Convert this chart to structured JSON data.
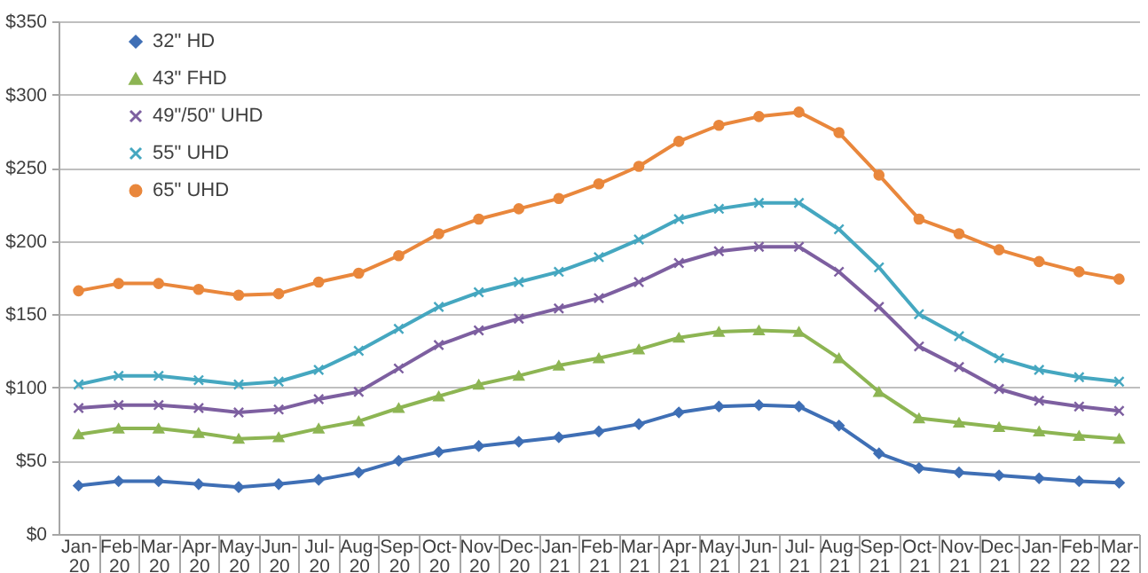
{
  "chart_data": {
    "type": "line",
    "categories": [
      "Jan-20",
      "Feb-20",
      "Mar-20",
      "Apr-20",
      "May-20",
      "Jun-20",
      "Jul-20",
      "Aug-20",
      "Sep-20",
      "Oct-20",
      "Nov-20",
      "Dec-20",
      "Jan-21",
      "Feb-21",
      "Mar-21",
      "Apr-21",
      "May-21",
      "Jun-21",
      "Jul-21",
      "Aug-21",
      "Sep-21",
      "Oct-21",
      "Nov-21",
      "Dec-21",
      "Jan-22",
      "Feb-22",
      "Mar-22"
    ],
    "series": [
      {
        "name": "32\" HD",
        "color": "#3f6fb5",
        "marker": "diamond",
        "values": [
          33,
          36,
          36,
          34,
          32,
          34,
          37,
          42,
          50,
          56,
          60,
          63,
          66,
          70,
          75,
          83,
          87,
          88,
          87,
          74,
          55,
          45,
          42,
          40,
          38,
          36,
          35
        ]
      },
      {
        "name": "43\" FHD",
        "color": "#8db553",
        "marker": "triangle",
        "values": [
          68,
          72,
          72,
          69,
          65,
          66,
          72,
          77,
          86,
          94,
          102,
          108,
          115,
          120,
          126,
          134,
          138,
          139,
          138,
          120,
          97,
          79,
          76,
          73,
          70,
          67,
          65
        ]
      },
      {
        "name": "49\"/50\" UHD",
        "color": "#7d5fa0",
        "marker": "cross",
        "values": [
          86,
          88,
          88,
          86,
          83,
          85,
          92,
          97,
          113,
          129,
          139,
          147,
          154,
          161,
          172,
          185,
          193,
          196,
          196,
          179,
          155,
          128,
          114,
          99,
          91,
          87,
          84
        ]
      },
      {
        "name": "55\" UHD",
        "color": "#45a7c0",
        "marker": "cross",
        "values": [
          102,
          108,
          108,
          105,
          102,
          104,
          112,
          125,
          140,
          155,
          165,
          172,
          179,
          189,
          201,
          215,
          222,
          226,
          226,
          208,
          182,
          150,
          135,
          120,
          112,
          107,
          104
        ]
      },
      {
        "name": "65\" UHD",
        "color": "#e9873c",
        "marker": "circle",
        "values": [
          166,
          171,
          171,
          167,
          163,
          164,
          172,
          178,
          190,
          205,
          215,
          222,
          229,
          239,
          251,
          268,
          279,
          285,
          288,
          274,
          245,
          215,
          205,
          194,
          186,
          179,
          174
        ]
      }
    ],
    "ylim": [
      0,
      350
    ],
    "yticks": [
      {
        "value": 0,
        "label": "$0"
      },
      {
        "value": 50,
        "label": "$50"
      },
      {
        "value": 100,
        "label": "$100"
      },
      {
        "value": 150,
        "label": "$150"
      },
      {
        "value": 200,
        "label": "$200"
      },
      {
        "value": 250,
        "label": "$250"
      },
      {
        "value": 300,
        "label": "$300"
      },
      {
        "value": 350,
        "label": "$350"
      }
    ],
    "grid": "y",
    "legend": "top left",
    "line_style": "solid"
  }
}
